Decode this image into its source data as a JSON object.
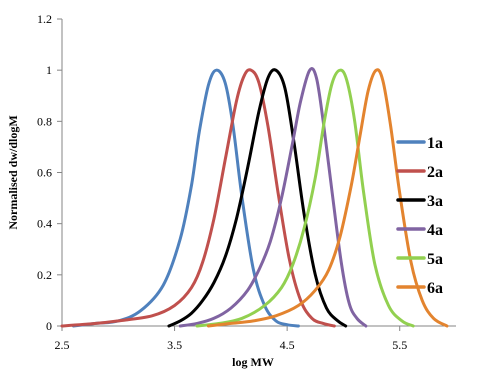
{
  "chart_data": {
    "type": "line",
    "title": "",
    "xlabel": "log MW",
    "ylabel": "Normalised dw/dlogM",
    "xlim": [
      2.5,
      6.0
    ],
    "ylim": [
      0,
      1.2
    ],
    "xticks": [
      2.5,
      3.5,
      4.5,
      5.5
    ],
    "xtick_labels": [
      "2.5",
      "3.5",
      "4.5",
      "5.5"
    ],
    "yticks": [
      0,
      0.2,
      0.4,
      0.6,
      0.8,
      1.0,
      1.2
    ],
    "ytick_labels": [
      "0",
      "0.2",
      "0.4",
      "0.6",
      "0.8",
      "1",
      "1.2"
    ],
    "grid": false,
    "legend_position": "right",
    "series": [
      {
        "name": "1a",
        "color": "#4F81BD",
        "x": [
          2.6,
          2.8,
          3.0,
          3.2,
          3.4,
          3.55,
          3.65,
          3.72,
          3.8,
          3.87,
          3.95,
          4.02,
          4.1,
          4.2,
          4.3,
          4.4,
          4.5,
          4.6
        ],
        "y": [
          0.0,
          0.01,
          0.02,
          0.06,
          0.16,
          0.34,
          0.55,
          0.76,
          0.94,
          1.0,
          0.95,
          0.78,
          0.5,
          0.22,
          0.08,
          0.02,
          0.005,
          0.0
        ]
      },
      {
        "name": "2a",
        "color": "#C0504D",
        "x": [
          2.5,
          2.8,
          3.0,
          3.3,
          3.5,
          3.65,
          3.75,
          3.85,
          3.95,
          4.05,
          4.12,
          4.18,
          4.25,
          4.33,
          4.42,
          4.52,
          4.62,
          4.72,
          4.82,
          4.92
        ],
        "y": [
          0.0,
          0.01,
          0.02,
          0.04,
          0.08,
          0.15,
          0.25,
          0.42,
          0.65,
          0.88,
          0.98,
          1.0,
          0.95,
          0.78,
          0.52,
          0.26,
          0.1,
          0.03,
          0.01,
          0.0
        ]
      },
      {
        "name": "3a",
        "color": "#000000",
        "x": [
          3.45,
          3.55,
          3.65,
          3.75,
          3.85,
          3.95,
          4.05,
          4.15,
          4.25,
          4.33,
          4.4,
          4.48,
          4.56,
          4.65,
          4.75,
          4.85,
          4.95,
          5.02
        ],
        "y": [
          0.0,
          0.02,
          0.05,
          0.1,
          0.17,
          0.27,
          0.42,
          0.62,
          0.84,
          0.97,
          1.0,
          0.93,
          0.72,
          0.44,
          0.2,
          0.07,
          0.02,
          0.0
        ]
      },
      {
        "name": "4a",
        "color": "#8064A2",
        "x": [
          3.55,
          3.7,
          3.85,
          4.0,
          4.15,
          4.25,
          4.35,
          4.45,
          4.55,
          4.62,
          4.7,
          4.76,
          4.82,
          4.9,
          4.98,
          5.05,
          5.12,
          5.2
        ],
        "y": [
          0.0,
          0.01,
          0.03,
          0.07,
          0.14,
          0.22,
          0.33,
          0.5,
          0.72,
          0.88,
          1.0,
          0.97,
          0.8,
          0.52,
          0.25,
          0.09,
          0.03,
          0.0
        ]
      },
      {
        "name": "5a",
        "color": "#92D050",
        "x": [
          3.7,
          3.9,
          4.1,
          4.3,
          4.45,
          4.55,
          4.65,
          4.75,
          4.83,
          4.9,
          4.97,
          5.03,
          5.1,
          5.18,
          5.28,
          5.4,
          5.52,
          5.62
        ],
        "y": [
          0.0,
          0.01,
          0.03,
          0.08,
          0.15,
          0.24,
          0.38,
          0.58,
          0.8,
          0.95,
          1.0,
          0.96,
          0.8,
          0.52,
          0.24,
          0.08,
          0.02,
          0.0
        ]
      },
      {
        "name": "6a",
        "color": "#E3842F",
        "x": [
          3.8,
          4.0,
          4.2,
          4.4,
          4.6,
          4.75,
          4.87,
          4.97,
          5.07,
          5.15,
          5.22,
          5.29,
          5.35,
          5.42,
          5.5,
          5.6,
          5.7,
          5.8,
          5.92
        ],
        "y": [
          0.0,
          0.01,
          0.02,
          0.04,
          0.08,
          0.14,
          0.22,
          0.35,
          0.55,
          0.75,
          0.92,
          1.0,
          0.96,
          0.78,
          0.52,
          0.25,
          0.1,
          0.03,
          0.0
        ]
      }
    ]
  }
}
